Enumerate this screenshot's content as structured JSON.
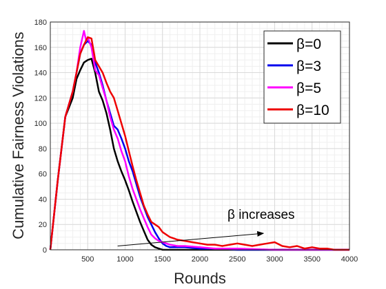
{
  "chart_data": {
    "type": "line",
    "xlabel": "Rounds",
    "ylabel": "Cumulative Fairness Violations",
    "xlim": [
      0,
      4000
    ],
    "ylim": [
      0,
      180
    ],
    "xticks": [
      500,
      1000,
      1500,
      2000,
      2500,
      3000,
      3500,
      4000
    ],
    "yticks": [
      0,
      20,
      40,
      60,
      80,
      100,
      120,
      140,
      160,
      180
    ],
    "grid": true,
    "legend_position": "top-right",
    "annotation": {
      "text": "β increases",
      "arrow_from": [
        900,
        3
      ],
      "arrow_to": [
        2850,
        13
      ]
    },
    "series": [
      {
        "name": "β=0",
        "color": "#000000",
        "x": [
          0,
          100,
          200,
          300,
          350,
          400,
          450,
          500,
          550,
          600,
          650,
          700,
          750,
          800,
          850,
          900,
          950,
          1000,
          1050,
          1100,
          1150,
          1200,
          1250,
          1300,
          1350,
          1400,
          1450,
          1500,
          1600,
          1700,
          2000,
          2500,
          3000,
          4000
        ],
        "y": [
          0,
          55,
          105,
          120,
          135,
          142,
          148,
          150,
          151,
          140,
          125,
          118,
          108,
          95,
          80,
          70,
          62,
          55,
          47,
          38,
          30,
          22,
          15,
          8,
          4,
          2,
          1,
          0,
          0,
          0,
          0,
          0,
          0,
          0
        ]
      },
      {
        "name": "β=3",
        "color": "#0000ee",
        "x": [
          0,
          100,
          200,
          300,
          350,
          400,
          450,
          500,
          550,
          600,
          650,
          700,
          750,
          800,
          850,
          900,
          950,
          1000,
          1050,
          1100,
          1150,
          1200,
          1250,
          1300,
          1350,
          1400,
          1450,
          1500,
          1550,
          1600,
          1700,
          1800,
          2000,
          2200,
          2500,
          3000,
          4000
        ],
        "y": [
          0,
          55,
          105,
          125,
          140,
          155,
          162,
          165,
          162,
          148,
          140,
          130,
          118,
          108,
          98,
          95,
          88,
          80,
          70,
          62,
          52,
          42,
          34,
          26,
          20,
          14,
          9,
          5,
          3,
          2,
          2,
          2,
          1,
          1,
          0,
          0,
          0
        ]
      },
      {
        "name": "β=5",
        "color": "#ff00ff",
        "x": [
          0,
          100,
          200,
          300,
          350,
          400,
          450,
          480,
          500,
          550,
          600,
          650,
          700,
          750,
          800,
          850,
          900,
          950,
          1000,
          1050,
          1100,
          1150,
          1200,
          1250,
          1300,
          1350,
          1400,
          1450,
          1500,
          1550,
          1600,
          1700,
          1800,
          2000,
          2200,
          2500,
          3000,
          4000
        ],
        "y": [
          0,
          55,
          105,
          125,
          140,
          160,
          173,
          165,
          168,
          160,
          142,
          138,
          128,
          118,
          105,
          95,
          88,
          78,
          70,
          58,
          48,
          40,
          32,
          25,
          18,
          12,
          9,
          7,
          6,
          5,
          4,
          3,
          3,
          2,
          1,
          1,
          0,
          0
        ]
      },
      {
        "name": "β=10",
        "color": "#ee0000",
        "x": [
          0,
          100,
          200,
          300,
          350,
          400,
          450,
          500,
          550,
          600,
          650,
          700,
          750,
          800,
          850,
          900,
          950,
          1000,
          1050,
          1100,
          1150,
          1200,
          1250,
          1300,
          1350,
          1400,
          1450,
          1500,
          1600,
          1700,
          1800,
          1900,
          2000,
          2100,
          2200,
          2300,
          2400,
          2500,
          2600,
          2700,
          2800,
          2900,
          3000,
          3100,
          3200,
          3300,
          3400,
          3500,
          3600,
          3700,
          3800,
          3900,
          4000
        ],
        "y": [
          0,
          55,
          105,
          125,
          140,
          155,
          162,
          168,
          167,
          150,
          145,
          140,
          132,
          125,
          120,
          110,
          100,
          90,
          78,
          66,
          55,
          45,
          35,
          28,
          22,
          20,
          18,
          14,
          10,
          8,
          7,
          6,
          5,
          4,
          4,
          3,
          4,
          5,
          4,
          3,
          4,
          5,
          6,
          3,
          2,
          3,
          1,
          2,
          1,
          1,
          0,
          0,
          0
        ]
      }
    ]
  }
}
